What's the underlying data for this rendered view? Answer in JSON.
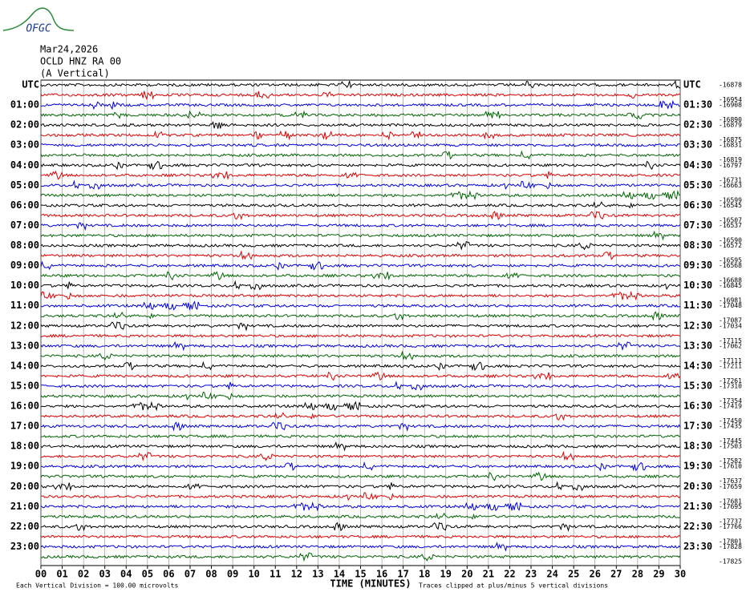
{
  "logo": "OFGC",
  "header": {
    "date": "Mar24,2026",
    "station": "OCLD HNZ RA 00",
    "component": "(A Vertical)"
  },
  "rows": [
    {
      "left": "UTC",
      "right": "UTC",
      "offset": "-16878"
    },
    {
      "left": null,
      "right": null,
      "offset": "-16954"
    },
    {
      "left": "01:00",
      "right": "01:30",
      "offset": "-16908"
    },
    {
      "left": null,
      "right": null,
      "offset": "-16890"
    },
    {
      "left": "02:00",
      "right": "02:30",
      "offset": "-16879"
    },
    {
      "left": null,
      "right": null,
      "offset": "-16875"
    },
    {
      "left": "03:00",
      "right": "03:30",
      "offset": "-16831"
    },
    {
      "left": null,
      "right": null,
      "offset": "-16819"
    },
    {
      "left": "04:00",
      "right": "04:30",
      "offset": "-16797"
    },
    {
      "left": null,
      "right": null,
      "offset": "-16731"
    },
    {
      "left": "05:00",
      "right": "05:30",
      "offset": "-16663"
    },
    {
      "left": null,
      "right": null,
      "offset": "-16599"
    },
    {
      "left": "06:00",
      "right": "06:30",
      "offset": "-16545"
    },
    {
      "left": null,
      "right": null,
      "offset": "-16507"
    },
    {
      "left": "07:00",
      "right": "07:30",
      "offset": "-16537"
    },
    {
      "left": null,
      "right": null,
      "offset": "-16590"
    },
    {
      "left": "08:00",
      "right": "08:30",
      "offset": "-16572"
    },
    {
      "left": null,
      "right": null,
      "offset": "-16595"
    },
    {
      "left": "09:00",
      "right": "09:30",
      "offset": "-16568"
    },
    {
      "left": null,
      "right": null,
      "offset": "-16688"
    },
    {
      "left": "10:00",
      "right": "10:30",
      "offset": "-16845"
    },
    {
      "left": null,
      "right": null,
      "offset": "-16981"
    },
    {
      "left": "11:00",
      "right": "11:30",
      "offset": "-17048"
    },
    {
      "left": null,
      "right": null,
      "offset": "-17087"
    },
    {
      "left": "12:00",
      "right": "12:30",
      "offset": "-17034"
    },
    {
      "left": null,
      "right": null,
      "offset": "-17115"
    },
    {
      "left": "13:00",
      "right": "13:30",
      "offset": "-17062"
    },
    {
      "left": null,
      "right": null,
      "offset": "-17111"
    },
    {
      "left": "14:00",
      "right": "14:30",
      "offset": "-17211"
    },
    {
      "left": null,
      "right": null,
      "offset": "-17261"
    },
    {
      "left": "15:00",
      "right": "15:30",
      "offset": "-17310"
    },
    {
      "left": null,
      "right": null,
      "offset": "-17354"
    },
    {
      "left": "16:00",
      "right": "16:30",
      "offset": "-17419"
    },
    {
      "left": null,
      "right": null,
      "offset": "-17450"
    },
    {
      "left": "17:00",
      "right": "17:30",
      "offset": "-17435"
    },
    {
      "left": null,
      "right": null,
      "offset": "-17445"
    },
    {
      "left": "18:00",
      "right": "18:30",
      "offset": "-17503"
    },
    {
      "left": null,
      "right": null,
      "offset": "-17582"
    },
    {
      "left": "19:00",
      "right": "19:30",
      "offset": "-17610"
    },
    {
      "left": null,
      "right": null,
      "offset": "-17637"
    },
    {
      "left": "20:00",
      "right": "20:30",
      "offset": "-17659"
    },
    {
      "left": null,
      "right": null,
      "offset": "-17681"
    },
    {
      "left": "21:00",
      "right": "21:30",
      "offset": "-17695"
    },
    {
      "left": null,
      "right": null,
      "offset": "-17737"
    },
    {
      "left": "22:00",
      "right": "22:30",
      "offset": "-17766"
    },
    {
      "left": null,
      "right": null,
      "offset": "-17801"
    },
    {
      "left": "23:00",
      "right": "23:30",
      "offset": "-17828"
    },
    {
      "left": null,
      "right": null,
      "offset": "-17825"
    }
  ],
  "trace_colors": [
    "#000000",
    "#e00000",
    "#0000e0",
    "#006400"
  ],
  "x_axis": {
    "ticks": [
      "00",
      "01",
      "02",
      "03",
      "04",
      "05",
      "06",
      "07",
      "08",
      "09",
      "10",
      "11",
      "12",
      "13",
      "14",
      "15",
      "16",
      "17",
      "18",
      "19",
      "20",
      "21",
      "22",
      "23",
      "24",
      "25",
      "26",
      "27",
      "28",
      "29",
      "30"
    ],
    "label": "TIME (MINUTES)"
  },
  "footer": {
    "left": "Each Vertical Division =  100.00 microvolts",
    "right": "Traces clipped at plus/minus 5 vertical divisions"
  }
}
